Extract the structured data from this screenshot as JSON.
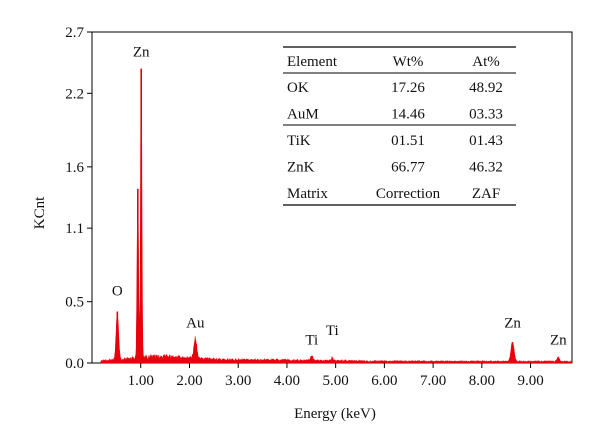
{
  "chart_data": {
    "type": "area",
    "xlabel": "Energy (keV)",
    "ylabel": "KCnt",
    "xlim": [
      0.0,
      9.85
    ],
    "ylim": [
      0.0,
      2.7
    ],
    "x_ticks": [
      1,
      2,
      3,
      4,
      5,
      6,
      7,
      8,
      9
    ],
    "x_tick_labels": [
      "1.00",
      "2.00",
      "3.00",
      "4.00",
      "5.00",
      "6.00",
      "7.00",
      "8.00",
      "9.00"
    ],
    "y_ticks": [
      0.0,
      0.5,
      1.1,
      1.6,
      2.2,
      2.7
    ],
    "y_tick_labels": [
      "0.0",
      "0.5",
      "1.1",
      "1.6",
      "2.2",
      "2.7"
    ],
    "grid": false,
    "color": "#e8000b",
    "series": [
      {
        "peaks": [
          {
            "x": 0.52,
            "y": 0.42
          },
          {
            "x": 0.94,
            "y": 1.42
          },
          {
            "x": 1.01,
            "y": 2.4
          },
          {
            "x": 2.12,
            "y": 0.19
          },
          {
            "x": 4.51,
            "y": 0.05
          },
          {
            "x": 4.93,
            "y": 0.03
          },
          {
            "x": 8.63,
            "y": 0.17
          },
          {
            "x": 9.57,
            "y": 0.04
          }
        ]
      }
    ],
    "annotations": [
      {
        "text": "Zn",
        "x": 1.01,
        "y": 2.5
      },
      {
        "text": "O",
        "x": 0.52,
        "y": 0.55
      },
      {
        "text": "Au",
        "x": 2.12,
        "y": 0.29
      },
      {
        "text": "Ti",
        "x": 4.51,
        "y": 0.15
      },
      {
        "text": "Ti",
        "x": 4.93,
        "y": 0.23
      },
      {
        "text": "Zn",
        "x": 8.63,
        "y": 0.29
      },
      {
        "text": "Zn",
        "x": 9.57,
        "y": 0.15
      }
    ],
    "table": {
      "columns": [
        "Element",
        "Wt%",
        "At%"
      ],
      "rows": [
        [
          "OK",
          "17.26",
          "48.92"
        ],
        [
          "AuM",
          "14.46",
          "03.33"
        ],
        [
          "TiK",
          "01.51",
          "01.43"
        ],
        [
          "ZnK",
          "66.77",
          "46.32"
        ],
        [
          "Matrix",
          "Correction",
          "ZAF"
        ]
      ]
    }
  }
}
